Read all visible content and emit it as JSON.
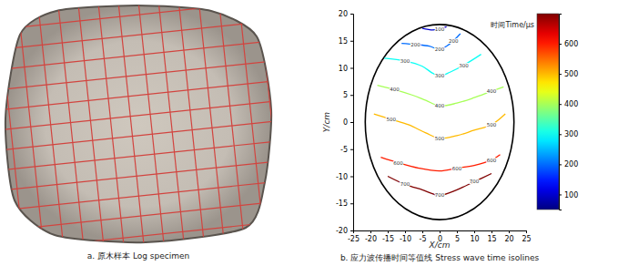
{
  "chart_data": [
    {
      "type": "image",
      "caption": "a. 原木样本 Log specimen"
    },
    {
      "type": "contour",
      "caption": "b. 应力波传播时间等值线 Stress wave time isolines",
      "xlabel": "X/cm",
      "ylabel": "Y/cm",
      "xlim": [
        -25,
        25
      ],
      "ylim": [
        -20,
        20
      ],
      "xticks": [
        -25,
        -20,
        -15,
        -10,
        -5,
        0,
        5,
        10,
        15,
        20,
        25
      ],
      "yticks": [
        -20,
        -15,
        -10,
        -5,
        0,
        5,
        10,
        15,
        20
      ],
      "boundary": {
        "cx": 0,
        "cy": 0,
        "rx": 21.5,
        "ry": 18
      },
      "colorbar": {
        "title": "时间Time/μs",
        "range": [
          50,
          700
        ],
        "ticks": [
          100,
          200,
          300,
          400,
          500,
          600
        ]
      },
      "levels": [
        {
          "value": 100,
          "x": [
            -5,
            -2,
            0,
            2
          ],
          "y": [
            17.3,
            17.0,
            17.2,
            17.6
          ]
        },
        {
          "value": 200,
          "x": [
            -11,
            -7,
            -3,
            0,
            2,
            4,
            6
          ],
          "y": [
            14.5,
            14.3,
            14,
            13.4,
            14,
            15,
            16.3
          ]
        },
        {
          "value": 300,
          "x": [
            -16,
            -10,
            -5,
            -2,
            0,
            3,
            7,
            12
          ],
          "y": [
            11.8,
            11.3,
            10.3,
            9,
            8.5,
            9.2,
            10.5,
            12.5
          ]
        },
        {
          "value": 400,
          "x": [
            -18,
            -13,
            -8,
            -4,
            0,
            5,
            10,
            15,
            18.5
          ],
          "y": [
            6.8,
            6,
            5,
            4,
            3,
            3.5,
            4.5,
            5.7,
            6.5
          ]
        },
        {
          "value": 500,
          "x": [
            -19,
            -14,
            -9,
            -4,
            0,
            5,
            10,
            15,
            19
          ],
          "y": [
            1.5,
            0.5,
            -0.5,
            -2,
            -3,
            -2.5,
            -1.5,
            -0.5,
            1.5
          ]
        },
        {
          "value": 600,
          "x": [
            -17,
            -12,
            -6,
            0,
            5,
            10,
            15,
            17.5
          ],
          "y": [
            -6.5,
            -7.5,
            -8.5,
            -9,
            -8.5,
            -8,
            -7,
            -6
          ]
        },
        {
          "value": 700,
          "x": [
            -15,
            -10,
            -5,
            0,
            5,
            10,
            15
          ],
          "y": [
            -10,
            -11.5,
            -12.5,
            -13.5,
            -12.5,
            -11,
            -9.5
          ]
        }
      ]
    }
  ]
}
